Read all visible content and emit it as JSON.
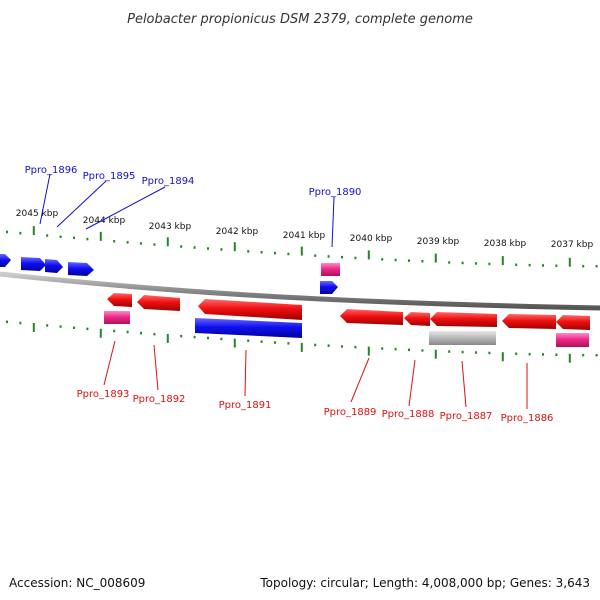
{
  "title": "Pelobacter propionicus DSM 2379, complete genome",
  "ruler_labels": [
    "2045 kbp",
    "2044 kbp",
    "2043 kbp",
    "2042 kbp",
    "2041 kbp",
    "2040 kbp",
    "2039 kbp",
    "2038 kbp",
    "2037 kbp"
  ],
  "gene_labels_top": [
    "Ppro_1896",
    "Ppro_1895",
    "Ppro_1894",
    "Ppro_1890"
  ],
  "gene_labels_bottom": [
    "Ppro_1893",
    "Ppro_1892",
    "Ppro_1891",
    "Ppro_1889",
    "Ppro_1888",
    "Ppro_1887",
    "Ppro_1886"
  ],
  "footer": {
    "accession": "Accession: NC_008609",
    "summary": "Topology: circular; Length: 4,008,000 bp; Genes: 3,643"
  },
  "colors": {
    "forward_strand": "#1010ee",
    "reverse_strand": "#ee1010",
    "pink_feature": "#ee2a8a",
    "gray_feature": "#bbbbbb",
    "backbone": "#888888",
    "ruler_ticks": "#228822"
  }
}
